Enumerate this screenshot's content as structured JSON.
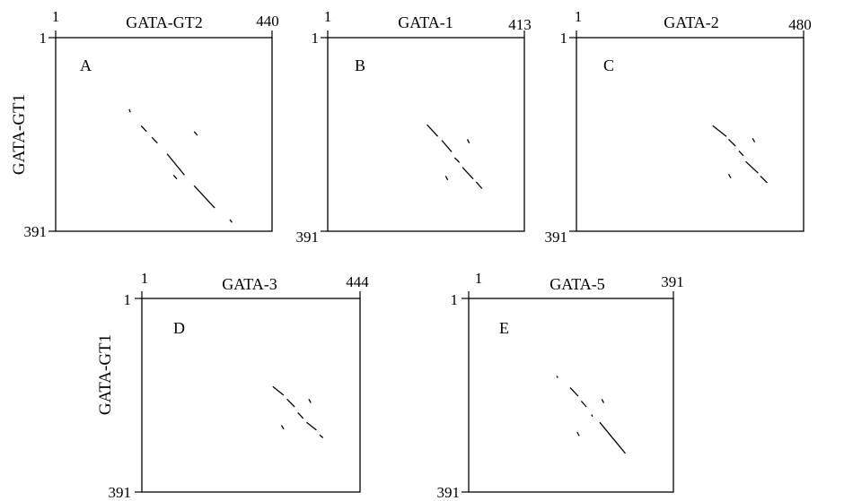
{
  "figure": {
    "y_axis_label": "GATA-GT1",
    "panels": [
      {
        "letter": "A",
        "title": "GATA-GT2",
        "x_start": "1",
        "x_end": "440",
        "y_start": "1",
        "y_end": "391",
        "dots": [
          [
            [
              0.34,
              0.37
            ],
            [
              0.345,
              0.385
            ]
          ],
          [
            [
              0.395,
              0.455
            ],
            [
              0.42,
              0.485
            ]
          ],
          [
            [
              0.445,
              0.515
            ],
            [
              0.47,
              0.545
            ]
          ],
          [
            [
              0.515,
              0.6
            ],
            [
              0.595,
              0.71
            ]
          ],
          [
            [
              0.64,
              0.765
            ],
            [
              0.735,
              0.88
            ]
          ],
          [
            [
              0.805,
              0.94
            ],
            [
              0.815,
              0.955
            ]
          ],
          [
            [
              0.64,
              0.485
            ],
            [
              0.655,
              0.505
            ]
          ],
          [
            [
              0.545,
              0.71
            ],
            [
              0.56,
              0.73
            ]
          ]
        ]
      },
      {
        "letter": "B",
        "title": "GATA-1",
        "x_start": "1",
        "x_end": "413",
        "y_start": "1",
        "y_end": "391",
        "dots": [
          [
            [
              0.505,
              0.45
            ],
            [
              0.56,
              0.51
            ]
          ],
          [
            [
              0.58,
              0.53
            ],
            [
              0.63,
              0.59
            ]
          ],
          [
            [
              0.645,
              0.62
            ],
            [
              0.67,
              0.645
            ]
          ],
          [
            [
              0.685,
              0.67
            ],
            [
              0.74,
              0.73
            ]
          ],
          [
            [
              0.755,
              0.745
            ],
            [
              0.785,
              0.78
            ]
          ],
          [
            [
              0.71,
              0.525
            ],
            [
              0.72,
              0.545
            ]
          ],
          [
            [
              0.6,
              0.715
            ],
            [
              0.61,
              0.735
            ]
          ]
        ]
      },
      {
        "letter": "C",
        "title": "GATA-2",
        "x_start": "1",
        "x_end": "480",
        "y_start": "1",
        "y_end": "391",
        "dots": [
          [
            [
              0.6,
              0.455
            ],
            [
              0.66,
              0.51
            ]
          ],
          [
            [
              0.67,
              0.525
            ],
            [
              0.7,
              0.56
            ]
          ],
          [
            [
              0.715,
              0.585
            ],
            [
              0.735,
              0.61
            ]
          ],
          [
            [
              0.745,
              0.64
            ],
            [
              0.8,
              0.7
            ]
          ],
          [
            [
              0.81,
              0.715
            ],
            [
              0.84,
              0.75
            ]
          ],
          [
            [
              0.775,
              0.52
            ],
            [
              0.785,
              0.54
            ]
          ],
          [
            [
              0.67,
              0.705
            ],
            [
              0.68,
              0.725
            ]
          ]
        ]
      },
      {
        "letter": "D",
        "title": "GATA-3",
        "x_start": "1",
        "x_end": "444",
        "y_start": "1",
        "y_end": "391",
        "dots": [
          [
            [
              0.6,
              0.455
            ],
            [
              0.65,
              0.5
            ]
          ],
          [
            [
              0.665,
              0.52
            ],
            [
              0.7,
              0.56
            ]
          ],
          [
            [
              0.715,
              0.59
            ],
            [
              0.74,
              0.62
            ]
          ],
          [
            [
              0.755,
              0.64
            ],
            [
              0.8,
              0.68
            ]
          ],
          [
            [
              0.815,
              0.705
            ],
            [
              0.83,
              0.72
            ]
          ],
          [
            [
              0.765,
              0.52
            ],
            [
              0.775,
              0.54
            ]
          ],
          [
            [
              0.64,
              0.655
            ],
            [
              0.65,
              0.675
            ]
          ]
        ]
      },
      {
        "letter": "E",
        "title": "GATA-5",
        "x_start": "1",
        "x_end": "391",
        "y_start": "1",
        "y_end": "391",
        "dots": [
          [
            [
              0.43,
              0.4
            ],
            [
              0.435,
              0.41
            ]
          ],
          [
            [
              0.495,
              0.46
            ],
            [
              0.535,
              0.505
            ]
          ],
          [
            [
              0.55,
              0.53
            ],
            [
              0.575,
              0.56
            ]
          ],
          [
            [
              0.6,
              0.6
            ],
            [
              0.605,
              0.61
            ]
          ],
          [
            [
              0.64,
              0.64
            ],
            [
              0.765,
              0.8
            ]
          ],
          [
            [
              0.65,
              0.52
            ],
            [
              0.66,
              0.54
            ]
          ],
          [
            [
              0.53,
              0.69
            ],
            [
              0.54,
              0.71
            ]
          ]
        ]
      }
    ]
  }
}
